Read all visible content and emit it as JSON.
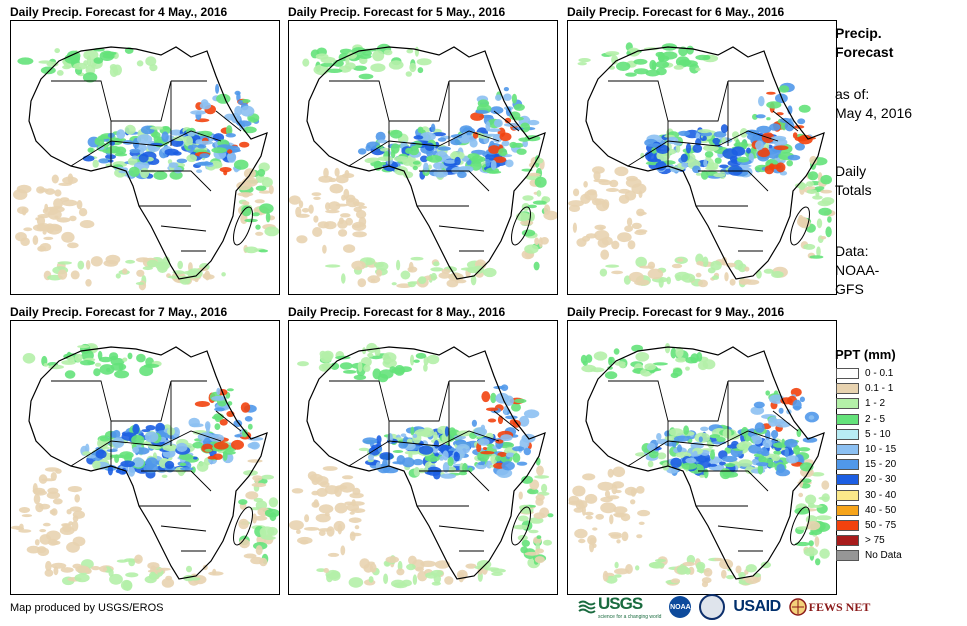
{
  "panels": [
    {
      "title": "Daily Precip. Forecast for 4 May., 2016"
    },
    {
      "title": "Daily Precip. Forecast for 5 May., 2016"
    },
    {
      "title": "Daily Precip. Forecast for 6 May., 2016"
    },
    {
      "title": "Daily Precip. Forecast for 7 May., 2016"
    },
    {
      "title": "Daily Precip. Forecast for 8 May., 2016"
    },
    {
      "title": "Daily Precip. Forecast for 9 May., 2016"
    }
  ],
  "side": {
    "title_line1": "Precip.",
    "title_line2": "Forecast",
    "asof_line1": "as of:",
    "asof_line2": "May 4, 2016",
    "totals_line1": "Daily",
    "totals_line2": "Totals",
    "data_line1": "Data:",
    "data_line2": "NOAA-",
    "data_line3": "GFS"
  },
  "legend": {
    "title": "PPT (mm)",
    "items": [
      {
        "label": "0 - 0.1",
        "color": "#ffffff"
      },
      {
        "label": "0.1 - 1",
        "color": "#e8d3b0"
      },
      {
        "label": "1 - 2",
        "color": "#b4f0a8"
      },
      {
        "label": "2 - 5",
        "color": "#64e27a"
      },
      {
        "label": "5 - 10",
        "color": "#b8ecf4"
      },
      {
        "label": "10 - 15",
        "color": "#8cc0f2"
      },
      {
        "label": "15 - 20",
        "color": "#5098ea"
      },
      {
        "label": "20 - 30",
        "color": "#1c5ee2"
      },
      {
        "label": "30 - 40",
        "color": "#fbe88a"
      },
      {
        "label": "40 - 50",
        "color": "#f6a41a"
      },
      {
        "label": "50 - 75",
        "color": "#f2420e"
      },
      {
        "label": "> 75",
        "color": "#a81c1c"
      },
      {
        "label": "No Data",
        "color": "#969696"
      }
    ]
  },
  "credit": "Map produced by USGS/EROS",
  "logos": {
    "usgs": "USGS",
    "usgs_tagline": "science for a changing world",
    "noaa": "NOAA",
    "usaid": "USAID",
    "fews": "FEWS NET"
  }
}
